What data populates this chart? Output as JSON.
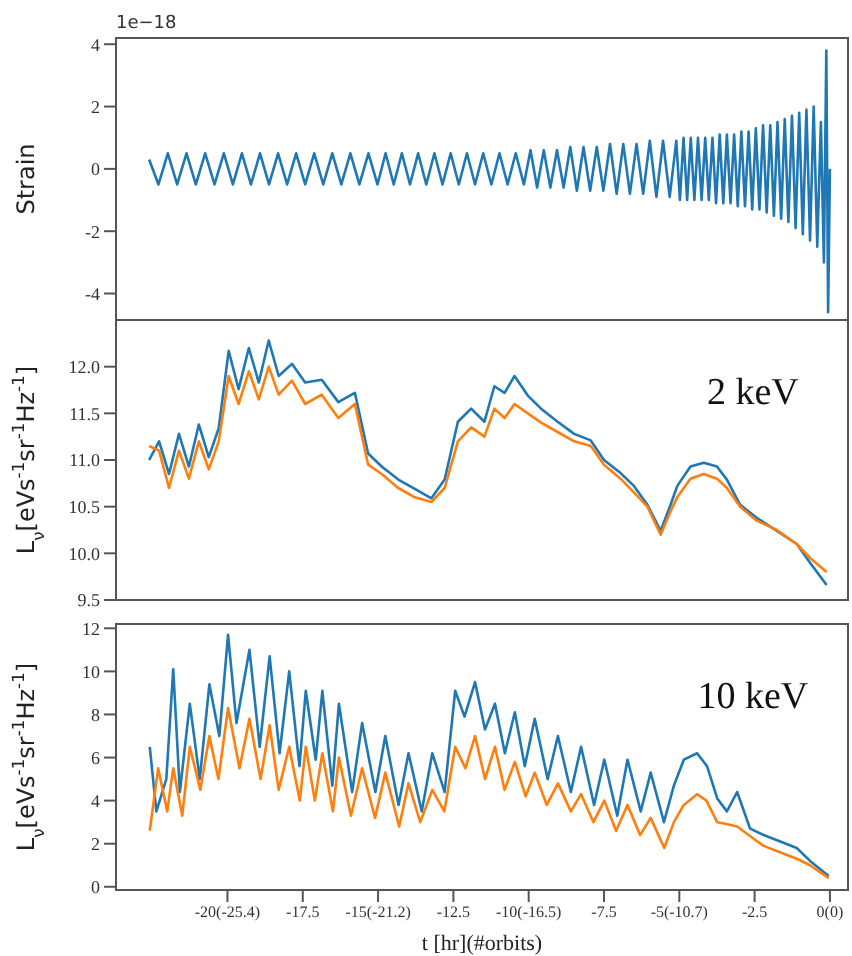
{
  "chart_data": [
    {
      "type": "line",
      "ylabel": "Strain",
      "annotations": [
        "1e−18"
      ],
      "tick_labels": "y",
      "xlim": [
        -23.7,
        0.6
      ],
      "ylim": [
        -4.85,
        4.2
      ],
      "yticks": [
        -4,
        -2,
        0,
        2,
        4
      ],
      "x": [
        -22.6,
        -22.29,
        -21.98,
        -21.67,
        -21.36,
        -21.05,
        -20.74,
        -20.43,
        -20.12,
        -19.82,
        -19.52,
        -19.22,
        -18.92,
        -18.62,
        -18.32,
        -18.02,
        -17.72,
        -17.42,
        -17.12,
        -16.82,
        -16.52,
        -16.22,
        -15.92,
        -15.62,
        -15.32,
        -15.02,
        -14.75,
        -14.48,
        -14.21,
        -13.94,
        -13.67,
        -13.4,
        -13.13,
        -12.86,
        -12.59,
        -12.32,
        -12.05,
        -11.78,
        -11.51,
        -11.24,
        -10.97,
        -10.7,
        -10.43,
        -10.16,
        -9.94,
        -9.72,
        -9.5,
        -9.28,
        -9.06,
        -8.84,
        -8.62,
        -8.4,
        -8.18,
        -7.96,
        -7.74,
        -7.52,
        -7.3,
        -7.08,
        -6.86,
        -6.64,
        -6.42,
        -6.2,
        -5.98,
        -5.76,
        -5.54,
        -5.32,
        -5.1,
        -4.98,
        -4.86,
        -4.74,
        -4.62,
        -4.5,
        -4.38,
        -4.26,
        -4.14,
        -4.02,
        -3.9,
        -3.78,
        -3.66,
        -3.54,
        -3.42,
        -3.3,
        -3.18,
        -3.06,
        -2.94,
        -2.82,
        -2.7,
        -2.58,
        -2.46,
        -2.34,
        -2.22,
        -2.1,
        -1.98,
        -1.86,
        -1.74,
        -1.62,
        -1.5,
        -1.38,
        -1.26,
        -1.14,
        -1.02,
        -0.9,
        -0.78,
        -0.66,
        -0.54,
        -0.42,
        -0.3,
        -0.2,
        -0.12,
        -0.06,
        0
      ],
      "series": [
        {
          "color": "#1f77b4",
          "values": [
            0.3,
            -0.5,
            0.5,
            -0.5,
            0.5,
            -0.5,
            0.5,
            -0.5,
            0.5,
            -0.5,
            0.5,
            -0.5,
            0.5,
            -0.5,
            0.5,
            -0.5,
            0.5,
            -0.5,
            0.5,
            -0.5,
            0.5,
            -0.5,
            0.5,
            -0.5,
            0.5,
            -0.5,
            0.5,
            -0.5,
            0.5,
            -0.5,
            0.5,
            -0.5,
            0.5,
            -0.5,
            0.5,
            -0.5,
            0.5,
            -0.5,
            0.5,
            -0.5,
            0.5,
            -0.5,
            0.5,
            -0.5,
            0.6,
            -0.6,
            0.6,
            -0.6,
            0.6,
            -0.6,
            0.7,
            -0.7,
            0.7,
            -0.7,
            0.7,
            -0.7,
            0.8,
            -0.8,
            0.8,
            -0.8,
            0.8,
            -0.8,
            0.9,
            -0.9,
            0.9,
            -0.9,
            0.9,
            -1.0,
            1.0,
            -1.0,
            1.0,
            -1.0,
            1.0,
            -1.0,
            1.0,
            -1.0,
            1.0,
            -1.1,
            1.1,
            -1.1,
            1.1,
            -1.1,
            1.1,
            -1.2,
            1.2,
            -1.2,
            1.2,
            -1.3,
            1.3,
            -1.3,
            1.4,
            -1.4,
            1.4,
            -1.5,
            1.5,
            -1.6,
            1.6,
            -1.7,
            1.7,
            -1.9,
            1.8,
            -2.1,
            1.9,
            -2.3,
            2.0,
            -2.5,
            1.5,
            -3.0,
            3.8,
            -4.6,
            0
          ]
        }
      ]
    },
    {
      "type": "line",
      "ylabel": "L$_{ν}$[eVs$^{-1}$sr$^{-1}$Hz$^{-1}$]",
      "annotations": [
        "2 keV"
      ],
      "tick_labels": "y",
      "xlim": [
        -23.7,
        0.6
      ],
      "ylim": [
        9.5,
        12.5
      ],
      "yticks": [
        9.5,
        {
          "value": 10,
          "label": "10.0"
        },
        10.5,
        {
          "value": 11,
          "label": "11.0"
        },
        11.5,
        {
          "value": 12,
          "label": "12.0"
        }
      ],
      "x": [
        -22.6,
        -22.27,
        -21.94,
        -21.61,
        -21.28,
        -20.95,
        -20.62,
        -20.29,
        -19.96,
        -19.63,
        -19.29,
        -18.96,
        -18.63,
        -18.3,
        -17.86,
        -17.42,
        -16.87,
        -16.32,
        -15.77,
        -15.33,
        -14.88,
        -14.33,
        -13.78,
        -13.23,
        -12.79,
        -12.35,
        -11.91,
        -11.47,
        -11.14,
        -10.8,
        -10.47,
        -10.03,
        -9.59,
        -9.04,
        -8.49,
        -7.94,
        -7.5,
        -6.95,
        -6.5,
        -6.06,
        -5.62,
        -5.29,
        -5.07,
        -4.63,
        -4.19,
        -3.75,
        -3.42,
        -2.98,
        -2.43,
        -1.76,
        -1.1,
        -0.66,
        -0.11
      ],
      "series": [
        {
          "color": "#1f77b4",
          "values": [
            11.0,
            11.2,
            10.85,
            11.28,
            10.93,
            11.38,
            11.03,
            11.34,
            12.17,
            11.76,
            12.2,
            11.83,
            12.28,
            11.9,
            12.03,
            11.83,
            11.86,
            11.62,
            11.72,
            11.07,
            10.93,
            10.79,
            10.69,
            10.59,
            10.79,
            11.41,
            11.55,
            11.41,
            11.79,
            11.72,
            11.9,
            11.69,
            11.55,
            11.41,
            11.28,
            11.21,
            11.0,
            10.86,
            10.72,
            10.52,
            10.24,
            10.52,
            10.72,
            10.93,
            10.97,
            10.93,
            10.79,
            10.52,
            10.38,
            10.24,
            10.1,
            9.9,
            9.66
          ]
        },
        {
          "color": "#ff7f0e",
          "values": [
            11.15,
            11.1,
            10.7,
            11.1,
            10.8,
            11.2,
            10.9,
            11.2,
            11.9,
            11.6,
            11.95,
            11.65,
            12.0,
            11.7,
            11.85,
            11.6,
            11.7,
            11.45,
            11.6,
            10.95,
            10.85,
            10.7,
            10.6,
            10.55,
            10.7,
            11.2,
            11.35,
            11.25,
            11.55,
            11.45,
            11.6,
            11.5,
            11.4,
            11.3,
            11.2,
            11.15,
            10.95,
            10.8,
            10.65,
            10.5,
            10.2,
            10.45,
            10.6,
            10.8,
            10.85,
            10.8,
            10.7,
            10.5,
            10.35,
            10.25,
            10.1,
            9.95,
            9.8
          ]
        }
      ]
    },
    {
      "type": "line",
      "ylabel": "L$_{ν}$[eVs$^{-1}$sr$^{-1}$Hz$^{-1}$]",
      "xlabel": "t [hr](#orbits)",
      "annotations": [
        "10 keV"
      ],
      "xlim": [
        -23.7,
        0.6
      ],
      "xticks": [
        {
          "value": -20,
          "label": "-20(-25.4)"
        },
        -17.5,
        {
          "value": -15,
          "label": "-15(-21.2)"
        },
        -12.5,
        {
          "value": -10,
          "label": "-10(-16.5)"
        },
        -7.5,
        {
          "value": -5,
          "label": "-5(-10.7)"
        },
        -2.5,
        {
          "value": 0,
          "label": "0(0)"
        }
      ],
      "ylim": [
        -0.15,
        12.2
      ],
      "yticks": [
        0,
        2,
        4,
        6,
        8,
        10,
        12
      ],
      "series": [
        {
          "color": "#1f77b4",
          "x": [
            -22.58,
            -22.36,
            -22.03,
            -21.8,
            -21.58,
            -21.25,
            -20.92,
            -20.6,
            -20.27,
            -19.98,
            -19.7,
            -19.27,
            -18.93,
            -18.6,
            -18.27,
            -17.95,
            -17.61,
            -17.4,
            -17.07,
            -16.85,
            -16.52,
            -16.3,
            -15.86,
            -15.53,
            -15.09,
            -14.76,
            -14.32,
            -13.99,
            -13.55,
            -13.2,
            -12.79,
            -12.44,
            -12.13,
            -11.78,
            -11.45,
            -11.12,
            -10.79,
            -10.46,
            -10.13,
            -9.8,
            -9.37,
            -9.03,
            -8.6,
            -8.26,
            -7.83,
            -7.49,
            -7.06,
            -6.72,
            -6.28,
            -5.95,
            -5.51,
            -5.18,
            -4.85,
            -4.41,
            -4.08,
            -3.74,
            -3.42,
            -3.08,
            -2.65,
            -2.2,
            -1.65,
            -1.1,
            -0.66,
            -0.04
          ],
          "values": [
            6.5,
            3.5,
            5.0,
            10.1,
            4.4,
            8.5,
            5.0,
            9.4,
            7.0,
            11.7,
            7.6,
            11.0,
            6.5,
            10.7,
            6.2,
            10.0,
            5.6,
            9.1,
            5.9,
            9.1,
            4.7,
            8.5,
            4.4,
            7.6,
            4.4,
            7.0,
            3.8,
            6.2,
            3.5,
            6.2,
            4.4,
            9.1,
            7.9,
            9.5,
            7.3,
            8.5,
            6.2,
            8.1,
            5.6,
            7.8,
            5.0,
            7.0,
            4.4,
            6.5,
            3.8,
            5.9,
            3.3,
            5.9,
            3.5,
            5.3,
            3.0,
            4.7,
            5.9,
            6.2,
            5.6,
            4.1,
            3.5,
            4.4,
            2.7,
            2.4,
            2.1,
            1.8,
            1.2,
            0.5
          ]
        },
        {
          "color": "#ff7f0e",
          "x": [
            -22.58,
            -22.3,
            -22.0,
            -21.8,
            -21.5,
            -21.25,
            -20.9,
            -20.6,
            -20.3,
            -19.98,
            -19.6,
            -19.27,
            -18.9,
            -18.6,
            -18.3,
            -17.95,
            -17.6,
            -17.4,
            -17.1,
            -16.85,
            -16.5,
            -16.3,
            -15.9,
            -15.53,
            -15.1,
            -14.76,
            -14.3,
            -13.99,
            -13.6,
            -13.2,
            -12.8,
            -12.44,
            -12.1,
            -11.78,
            -11.45,
            -11.12,
            -10.8,
            -10.46,
            -10.1,
            -9.8,
            -9.4,
            -9.03,
            -8.6,
            -8.26,
            -7.85,
            -7.49,
            -7.1,
            -6.72,
            -6.3,
            -5.95,
            -5.5,
            -5.18,
            -4.85,
            -4.41,
            -4.1,
            -3.74,
            -3.4,
            -3.08,
            -2.6,
            -2.2,
            -1.66,
            -1.1,
            -0.66,
            -0.04
          ],
          "values": [
            2.6,
            5.5,
            3.5,
            5.5,
            3.3,
            6.5,
            4.5,
            7.0,
            5.0,
            8.3,
            5.5,
            7.8,
            5.0,
            7.5,
            4.5,
            6.5,
            4.0,
            6.5,
            4.0,
            6.2,
            3.5,
            6.0,
            3.3,
            5.5,
            3.2,
            5.3,
            2.8,
            4.8,
            3.0,
            4.5,
            3.5,
            6.5,
            5.5,
            7.0,
            5.0,
            6.5,
            4.5,
            5.8,
            4.2,
            5.3,
            3.8,
            4.8,
            3.5,
            4.3,
            3.0,
            4.0,
            2.6,
            3.8,
            2.4,
            3.2,
            1.8,
            3.0,
            3.8,
            4.3,
            4.0,
            3.0,
            2.9,
            2.8,
            2.3,
            1.9,
            1.6,
            1.3,
            1.0,
            0.4
          ]
        }
      ]
    }
  ]
}
